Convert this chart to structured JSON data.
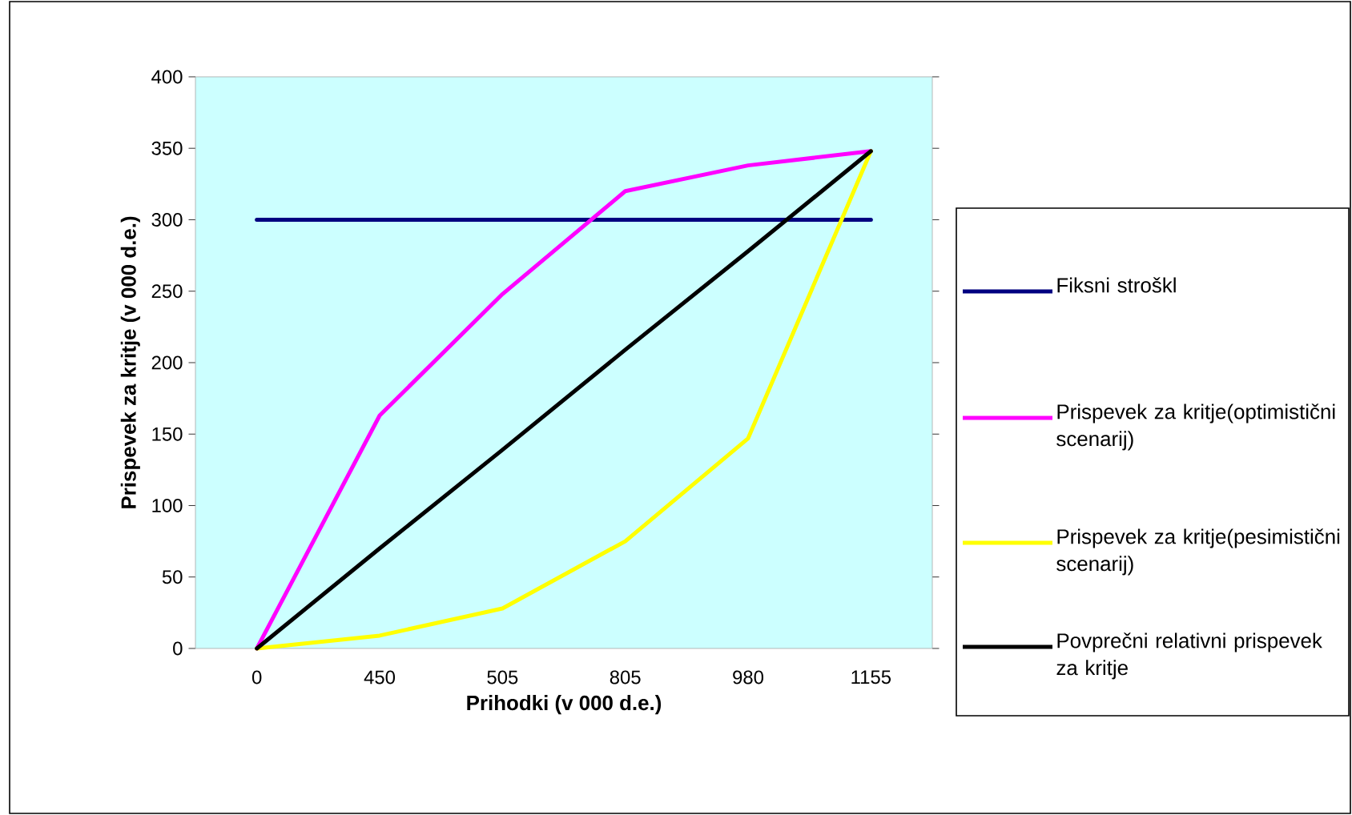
{
  "chart_data": {
    "type": "line",
    "xlabel": "Prihodki (v 000 d.e.)",
    "ylabel": "Prispevek za kritje (v 000 d.e.)",
    "categories": [
      "0",
      "450",
      "505",
      "805",
      "980",
      "1155"
    ],
    "series": [
      {
        "name": "Fiksni stroškl",
        "color": "#000080",
        "values": [
          300,
          300,
          300,
          300,
          300,
          300
        ]
      },
      {
        "name": "Prispevek za kritje(optimistični scenarij)",
        "color": "#ff00ff",
        "values": [
          0,
          163,
          248,
          320,
          338,
          348
        ]
      },
      {
        "name": "Prispevek za kritje(pesimistični scenarij)",
        "color": "#ffff00",
        "values": [
          0,
          9,
          28,
          75,
          147,
          348
        ]
      },
      {
        "name": "Povprečni relativni prispevek za kritje",
        "color": "#000000",
        "values": [
          0,
          70,
          139,
          209,
          278,
          348
        ]
      }
    ],
    "ylim": [
      0,
      400
    ],
    "yticks": [
      0,
      50,
      100,
      150,
      200,
      250,
      300,
      350,
      400
    ],
    "legend": "right",
    "grid": false,
    "marker": "none",
    "line_style": "solid"
  }
}
